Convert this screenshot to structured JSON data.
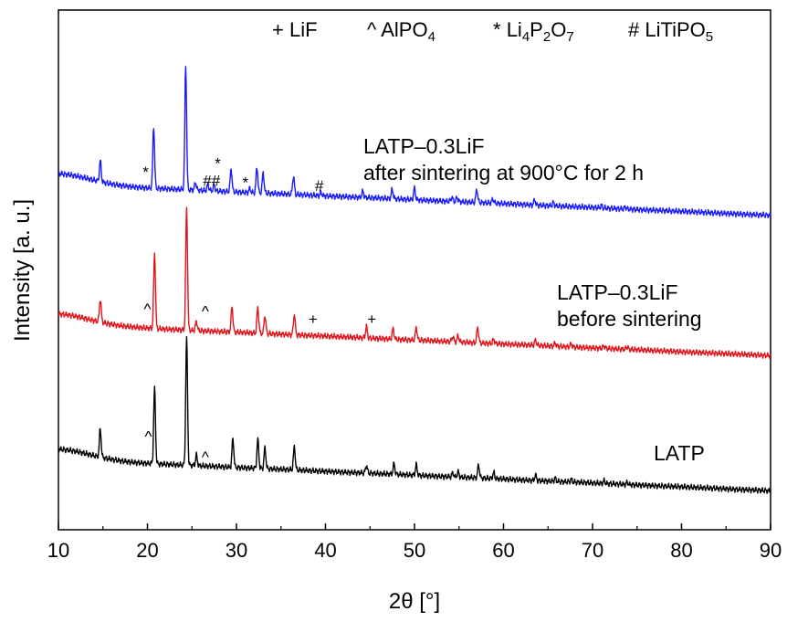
{
  "chart_data": {
    "type": "line",
    "xlabel": "2θ [°]",
    "ylabel": "Intensity [a. u.]",
    "xlim": [
      10,
      90
    ],
    "ylim": [
      0,
      1
    ],
    "xticks": [
      10,
      20,
      30,
      40,
      50,
      60,
      70,
      80,
      90
    ],
    "legend": {
      "position": "top",
      "entries": [
        {
          "symbol": "+",
          "text": "LiF"
        },
        {
          "symbol": "^",
          "text": "AlPO",
          "sub": "4"
        },
        {
          "symbol": "*",
          "parts": [
            [
              "Li",
              ""
            ],
            [
              "4",
              "sub"
            ],
            [
              "P",
              ""
            ],
            [
              "2",
              "sub"
            ],
            [
              "O",
              ""
            ],
            [
              "7",
              "sub"
            ]
          ]
        },
        {
          "symbol": "#",
          "parts": [
            [
              "LiTiPO",
              ""
            ],
            [
              "5",
              "sub"
            ]
          ]
        }
      ]
    },
    "series": [
      {
        "label": "LATP",
        "color": "#000000",
        "baseline_start": 0.135,
        "baseline_end": 0.075,
        "peaks": [
          [
            14.7,
            0.055
          ],
          [
            20.8,
            0.145
          ],
          [
            24.4,
            0.245
          ],
          [
            25.5,
            0.02
          ],
          [
            29.6,
            0.055
          ],
          [
            32.4,
            0.055
          ],
          [
            33.2,
            0.04
          ],
          [
            36.5,
            0.045
          ],
          [
            44.6,
            0.015
          ],
          [
            47.7,
            0.02
          ],
          [
            50.2,
            0.02
          ],
          [
            54.3,
            0.008
          ],
          [
            54.9,
            0.01
          ],
          [
            57.2,
            0.025
          ],
          [
            58.9,
            0.012
          ],
          [
            63.6,
            0.01
          ],
          [
            65.8,
            0.006
          ],
          [
            67.6,
            0.005
          ],
          [
            71.3,
            0.005
          ],
          [
            73.9,
            0.004
          ]
        ],
        "markers": [
          {
            "symbol": "^",
            "x": 20.1,
            "y": 0.17
          },
          {
            "symbol": "^",
            "x": 26.5,
            "y": 0.13
          }
        ]
      },
      {
        "label_lines": [
          "LATP–0.3LiF",
          "before sintering"
        ],
        "color": "#e0141b",
        "baseline_start": 0.395,
        "baseline_end": 0.335,
        "peaks": [
          [
            14.7,
            0.045
          ],
          [
            20.8,
            0.145
          ],
          [
            24.4,
            0.235
          ],
          [
            25.5,
            0.018
          ],
          [
            29.5,
            0.05
          ],
          [
            32.4,
            0.05
          ],
          [
            33.2,
            0.035
          ],
          [
            36.5,
            0.04
          ],
          [
            44.6,
            0.022
          ],
          [
            47.6,
            0.02
          ],
          [
            50.2,
            0.025
          ],
          [
            54.3,
            0.01
          ],
          [
            54.9,
            0.012
          ],
          [
            57.1,
            0.03
          ],
          [
            58.9,
            0.008
          ],
          [
            63.6,
            0.01
          ],
          [
            65.8,
            0.006
          ],
          [
            67.6,
            0.006
          ],
          [
            71.3,
            0.005
          ],
          [
            73.9,
            0.005
          ]
        ],
        "markers": [
          {
            "symbol": "^",
            "x": 20.0,
            "y": 0.415
          },
          {
            "symbol": "^",
            "x": 26.5,
            "y": 0.41
          },
          {
            "symbol": "+",
            "x": 38.6,
            "y": 0.395
          },
          {
            "symbol": "+",
            "x": 45.2,
            "y": 0.395
          }
        ]
      },
      {
        "label_lines": [
          "LATP–0.3LiF",
          "after sintering at 900°C for 2 h"
        ],
        "color": "#1a1aff",
        "baseline_start": 0.665,
        "baseline_end": 0.605,
        "peaks": [
          [
            14.7,
            0.04
          ],
          [
            20.7,
            0.12
          ],
          [
            24.3,
            0.24
          ],
          [
            25.4,
            0.015
          ],
          [
            26.8,
            0.012
          ],
          [
            27.5,
            0.012
          ],
          [
            29.4,
            0.045
          ],
          [
            31.5,
            0.008
          ],
          [
            32.3,
            0.05
          ],
          [
            33.0,
            0.04
          ],
          [
            36.4,
            0.035
          ],
          [
            39.5,
            0.006
          ],
          [
            44.2,
            0.012
          ],
          [
            47.5,
            0.018
          ],
          [
            50.0,
            0.022
          ],
          [
            54.2,
            0.008
          ],
          [
            54.8,
            0.008
          ],
          [
            57.0,
            0.026
          ],
          [
            58.8,
            0.008
          ],
          [
            63.5,
            0.01
          ],
          [
            65.6,
            0.006
          ],
          [
            71.0,
            0.005
          ],
          [
            73.7,
            0.004
          ]
        ],
        "markers": [
          {
            "symbol": "*",
            "x": 19.8,
            "y": 0.678
          },
          {
            "symbol": "*",
            "x": 27.9,
            "y": 0.695
          },
          {
            "symbol": "##",
            "x": 27.2,
            "y": 0.662
          },
          {
            "symbol": "*",
            "x": 31.0,
            "y": 0.658
          },
          {
            "symbol": "#",
            "x": 39.3,
            "y": 0.652
          }
        ]
      }
    ]
  }
}
